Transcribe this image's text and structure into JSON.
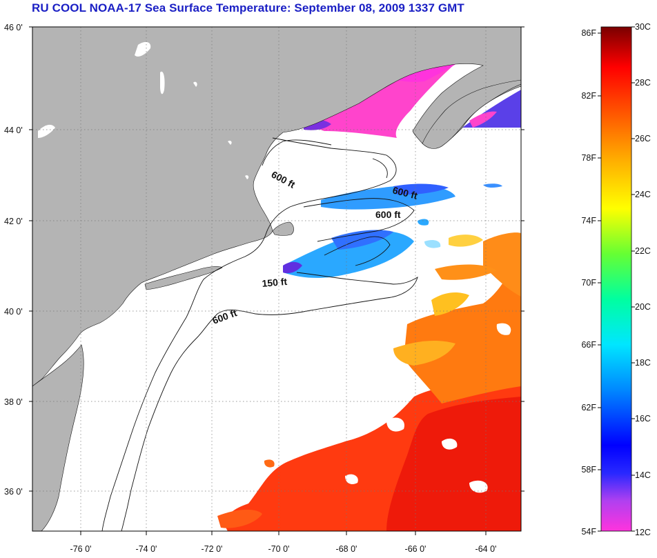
{
  "title": "RU COOL  NOAA-17  Sea Surface Temperature:  September 08, 2009 1337 GMT",
  "map": {
    "lat_labels": [
      "46 0'",
      "44 0'",
      "42 0'",
      "40 0'",
      "38 0'",
      "36 0'"
    ],
    "lon_labels": [
      "-76 0'",
      "-74 0'",
      "-72 0'",
      "-70 0'",
      "-68 0'",
      "-66 0'",
      "-64 0'"
    ],
    "contour_labels": [
      "600 ft",
      "600 ft",
      "600 ft",
      "150 ft",
      "600 ft"
    ],
    "colors": {
      "land": "#b4b4b4",
      "water_nodata": "#ffffff",
      "cold": "#ff44cc",
      "cool": "#1f8fff",
      "warm": "#ff2200",
      "title": "#1a1fc4"
    }
  },
  "colorbar": {
    "fahrenheit_labels": [
      "86F",
      "82F",
      "78F",
      "74F",
      "70F",
      "66F",
      "62F",
      "58F",
      "54F"
    ],
    "celsius_labels": [
      "30C",
      "28C",
      "26C",
      "24C",
      "22C",
      "20C",
      "18C",
      "16C",
      "14C",
      "12C"
    ],
    "range_c": [
      12,
      30
    ],
    "range_f": [
      54,
      86
    ]
  }
}
